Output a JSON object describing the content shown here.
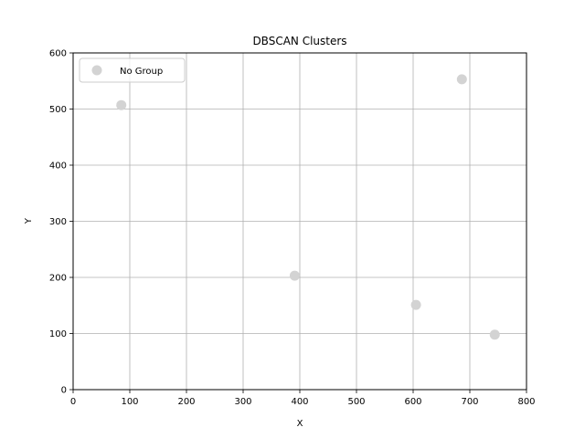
{
  "chart_data": {
    "type": "scatter",
    "title": "DBSCAN Clusters",
    "xlabel": "X",
    "ylabel": "Y",
    "xlim": [
      0,
      800
    ],
    "ylim": [
      0,
      600
    ],
    "xticks": [
      0,
      100,
      200,
      300,
      400,
      500,
      600,
      700,
      800
    ],
    "yticks": [
      0,
      100,
      200,
      300,
      400,
      500,
      600
    ],
    "grid": true,
    "legend_position": "top-left",
    "series": [
      {
        "name": "No Group",
        "color": "#d3d3d3",
        "points": [
          {
            "x": 85,
            "y": 507
          },
          {
            "x": 686,
            "y": 553
          },
          {
            "x": 391,
            "y": 203
          },
          {
            "x": 605,
            "y": 151
          },
          {
            "x": 744,
            "y": 98
          }
        ]
      }
    ]
  }
}
